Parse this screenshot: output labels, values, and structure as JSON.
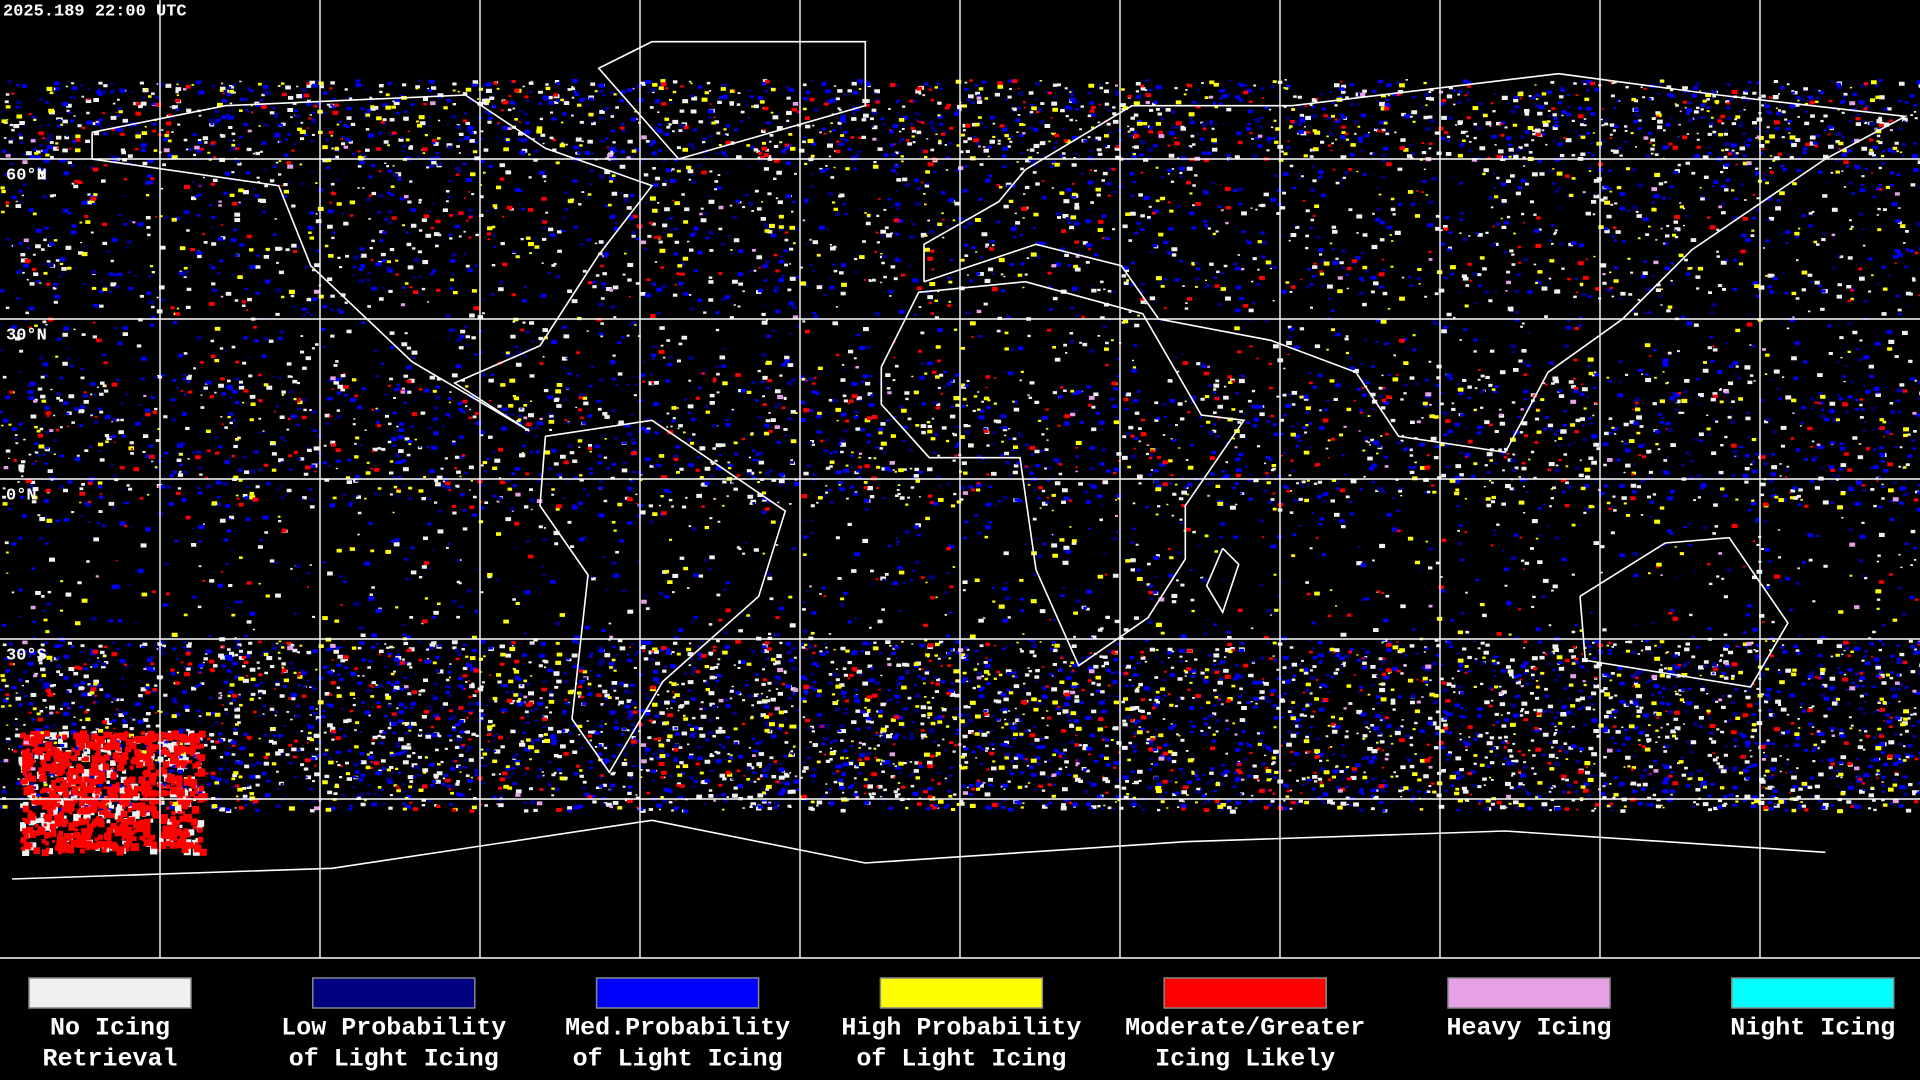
{
  "header": {
    "timestamp": "2025.189 22:00 UTC"
  },
  "map": {
    "lat_labels": [
      "60°N",
      "30°N",
      "0°N",
      "30°S"
    ]
  },
  "legend": [
    {
      "label_lines": [
        "No Icing",
        "Retrieval"
      ],
      "color": "#f0f0f0"
    },
    {
      "label_lines": [
        "Low Probability",
        "of Light Icing"
      ],
      "color": "#000080"
    },
    {
      "label_lines": [
        "Med.Probability",
        "of Light Icing"
      ],
      "color": "#0000ff"
    },
    {
      "label_lines": [
        "High Probability",
        "of Light Icing"
      ],
      "color": "#ffff00"
    },
    {
      "label_lines": [
        "Moderate/Greater",
        "Icing Likely"
      ],
      "color": "#ff0000"
    },
    {
      "label_lines": [
        "Heavy Icing"
      ],
      "color": "#e6a0e6"
    },
    {
      "label_lines": [
        "Night Icing"
      ],
      "color": "#00ffff"
    }
  ]
}
